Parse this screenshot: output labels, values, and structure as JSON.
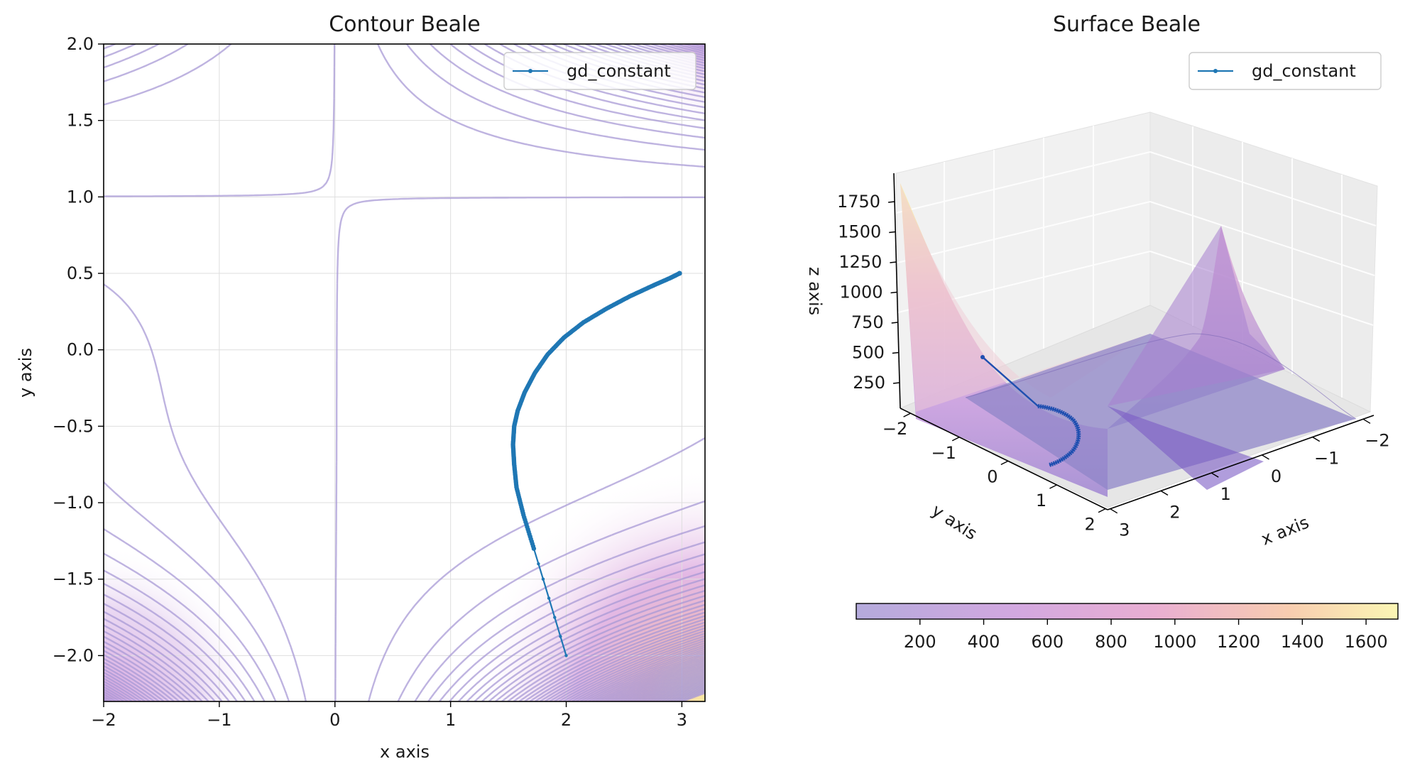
{
  "chart_data": [
    {
      "type": "contour",
      "title": "Contour Beale",
      "xlabel": "x axis",
      "ylabel": "y axis",
      "xlim": [
        -2,
        3.2
      ],
      "ylim": [
        -2.3,
        2.0
      ],
      "xticks": [
        "−2",
        "−1",
        "0",
        "1",
        "2",
        "3"
      ],
      "yticks": [
        "2.0",
        "1.5",
        "1.0",
        "0.5",
        "0.0",
        "−0.5",
        "−1.0",
        "−1.5",
        "−2.0"
      ],
      "grid": true,
      "legend": {
        "label": "gd_constant",
        "position": "upper right"
      },
      "colormap": [
        "#b4aadc",
        "#cfa6e0",
        "#e8a5cf",
        "#f6c3a8",
        "#fbe9a3"
      ],
      "path": {
        "name": "gd_constant",
        "color": "#1f77b4",
        "points": [
          [
            2.0,
            -2.0
          ],
          [
            1.9,
            -1.75
          ],
          [
            1.8,
            -1.5
          ],
          [
            1.72,
            -1.3
          ],
          [
            1.63,
            -1.08
          ],
          [
            1.57,
            -0.9
          ],
          [
            1.55,
            -0.75
          ],
          [
            1.54,
            -0.62
          ],
          [
            1.55,
            -0.5
          ],
          [
            1.58,
            -0.4
          ],
          [
            1.64,
            -0.28
          ],
          [
            1.73,
            -0.15
          ],
          [
            1.84,
            -0.03
          ],
          [
            1.98,
            0.08
          ],
          [
            2.15,
            0.18
          ],
          [
            2.35,
            0.27
          ],
          [
            2.55,
            0.35
          ],
          [
            2.75,
            0.42
          ],
          [
            2.9,
            0.47
          ],
          [
            2.98,
            0.5
          ]
        ]
      }
    },
    {
      "type": "surface3d",
      "title": "Surface Beale",
      "xlabel": "x axis",
      "ylabel": "y axis",
      "zlabel": "z axis",
      "xticks": [
        "−2",
        "−1",
        "0",
        "1",
        "2",
        "3"
      ],
      "yticks": [
        "−2",
        "−1",
        "0",
        "1",
        "2"
      ],
      "zticks": [
        "1750",
        "1500",
        "1250",
        "1000",
        "750",
        "500",
        "250"
      ],
      "legend": {
        "label": "gd_constant",
        "position": "upper right"
      },
      "colorbar": {
        "ticks": [
          "200",
          "400",
          "600",
          "800",
          "1000",
          "1200",
          "1400",
          "1600"
        ],
        "min": 0,
        "max": 1700
      }
    }
  ]
}
